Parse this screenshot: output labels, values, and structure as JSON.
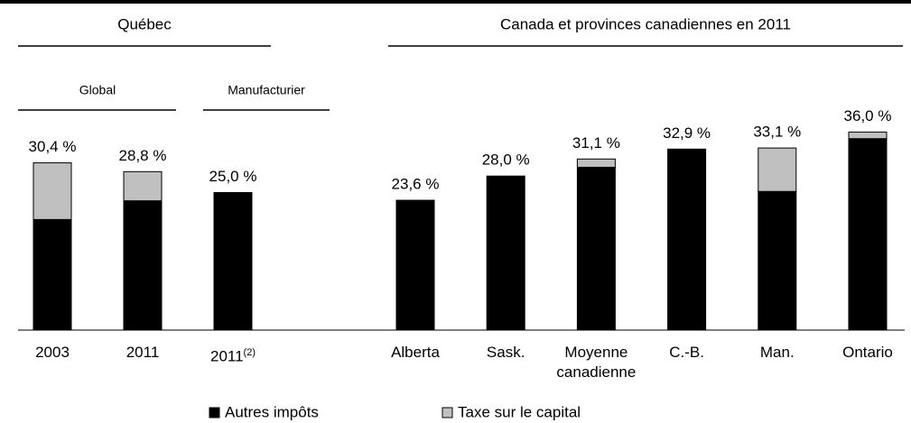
{
  "chart_data": {
    "type": "stacked_bar",
    "group_titles": [
      "Québec",
      "Canada et provinces canadiennes en 2011"
    ],
    "subgroup_titles": [
      "Global",
      "Manufacturier"
    ],
    "categories": [
      "2003",
      "2011",
      "2011",
      "Alberta",
      "Sask.",
      "Moyenne canadienne",
      "C.-B.",
      "Man.",
      "Ontario"
    ],
    "category_superscripts": [
      null,
      null,
      "(2)",
      null,
      null,
      null,
      null,
      null,
      null
    ],
    "series": [
      {
        "name": "Autres impôts",
        "color": "#000000",
        "values": [
          20.1,
          23.5,
          25.0,
          23.6,
          28.0,
          29.6,
          32.9,
          25.2,
          34.8
        ]
      },
      {
        "name": "Taxe sur le capital",
        "color": "#c0c0c0",
        "values": [
          10.3,
          5.3,
          0,
          0,
          0,
          1.5,
          0,
          7.9,
          1.2
        ]
      }
    ],
    "totals": [
      30.4,
      28.8,
      25.0,
      23.6,
      28.0,
      31.1,
      32.9,
      33.1,
      36.0
    ],
    "total_labels": [
      "30,4 %",
      "28,8 %",
      "25,0 %",
      "23,6 %",
      "28,0 %",
      "31,1 %",
      "32,9 %",
      "33,1 %",
      "36,0 %"
    ],
    "ylim": [
      0,
      40
    ]
  }
}
